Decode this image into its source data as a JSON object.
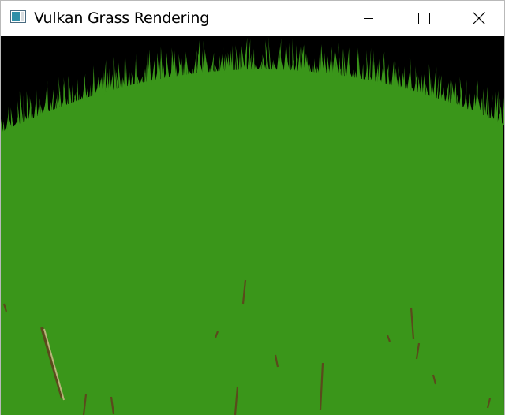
{
  "window": {
    "title": "Vulkan Grass Rendering",
    "icon": "vulkan-app-icon",
    "controls": {
      "minimize_icon": "minimize-icon",
      "maximize_icon": "maximize-icon",
      "close_icon": "close-icon"
    }
  },
  "viewport": {
    "background_color": "#000000",
    "grass_color": "#3a961a",
    "blade_shadow_color": "#5a4a1c",
    "blade_highlight_color": "#b8b47a"
  }
}
